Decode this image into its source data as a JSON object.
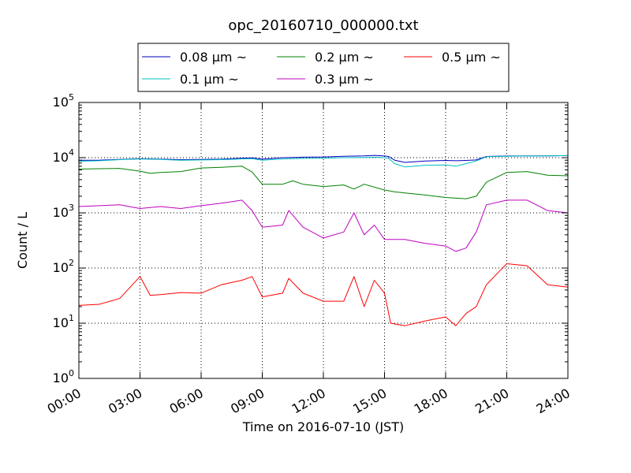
{
  "chart_data": {
    "type": "line",
    "title": "opc_20160710_000000.txt",
    "xlabel": "Time on 2016-07-10 (JST)",
    "ylabel": "Count / L",
    "xlim": [
      0,
      24
    ],
    "ylim": [
      1,
      100000
    ],
    "yscale": "log",
    "grid": true,
    "legend_position": "top",
    "x_ticks": [
      {
        "value": 0,
        "label": "00:00"
      },
      {
        "value": 3,
        "label": "03:00"
      },
      {
        "value": 6,
        "label": "06:00"
      },
      {
        "value": 9,
        "label": "09:00"
      },
      {
        "value": 12,
        "label": "12:00"
      },
      {
        "value": 15,
        "label": "15:00"
      },
      {
        "value": 18,
        "label": "18:00"
      },
      {
        "value": 21,
        "label": "21:00"
      },
      {
        "value": 24,
        "label": "24:00"
      }
    ],
    "y_ticks": [
      {
        "value": 1,
        "base": "10",
        "exp": "0"
      },
      {
        "value": 10,
        "base": "10",
        "exp": "1"
      },
      {
        "value": 100,
        "base": "10",
        "exp": "2"
      },
      {
        "value": 1000,
        "base": "10",
        "exp": "3"
      },
      {
        "value": 10000,
        "base": "10",
        "exp": "4"
      },
      {
        "value": 100000,
        "base": "10",
        "exp": "5"
      }
    ],
    "series": [
      {
        "name": "0.08 μm ~",
        "color": "#0000bf",
        "x": [
          0,
          1,
          2,
          3,
          4,
          5,
          6,
          7,
          8,
          8.5,
          9,
          10,
          11,
          12,
          13,
          14,
          14.5,
          15,
          15.2,
          15.5,
          16,
          17,
          18,
          18.5,
          19,
          19.5,
          20,
          21,
          22,
          23,
          24
        ],
        "y": [
          9000,
          9000,
          9300,
          9600,
          9400,
          9200,
          9300,
          9400,
          9800,
          9900,
          9400,
          10000,
          10200,
          10300,
          10600,
          10800,
          11000,
          10700,
          10500,
          9000,
          8200,
          8700,
          8900,
          8800,
          8900,
          9100,
          10500,
          10700,
          10800,
          10800,
          10900
        ]
      },
      {
        "name": "0.1 μm ~",
        "color": "#00bfbf",
        "x": [
          0,
          1,
          2,
          3,
          4,
          5,
          6,
          7,
          8,
          8.5,
          9,
          10,
          11,
          12,
          13,
          14,
          14.5,
          15,
          15.2,
          15.5,
          16,
          17,
          18,
          18.5,
          19,
          19.5,
          20,
          21,
          22,
          23,
          24
        ],
        "y": [
          8600,
          8800,
          9200,
          9500,
          9300,
          9000,
          9100,
          9200,
          9500,
          9600,
          9000,
          9500,
          9700,
          9800,
          10000,
          10100,
          10200,
          10000,
          9700,
          7800,
          6800,
          7300,
          7400,
          7000,
          7800,
          8700,
          10400,
          10600,
          10700,
          10800,
          10900
        ]
      },
      {
        "name": "0.2 μm ~",
        "color": "#008000",
        "x": [
          0,
          1,
          2,
          3,
          3.5,
          4,
          5,
          6,
          7,
          8,
          8.5,
          9,
          10,
          10.5,
          11,
          12,
          13,
          13.5,
          14,
          15,
          15.5,
          16,
          17,
          18,
          19,
          19.5,
          20,
          21,
          22,
          23,
          24
        ],
        "y": [
          6200,
          6300,
          6400,
          5700,
          5200,
          5400,
          5600,
          6500,
          6700,
          7000,
          5500,
          3300,
          3300,
          3800,
          3300,
          3000,
          3200,
          2700,
          3300,
          2600,
          2400,
          2300,
          2100,
          1900,
          1800,
          2000,
          3600,
          5400,
          5600,
          4800,
          4700
        ]
      },
      {
        "name": "0.3 μm ~",
        "color": "#bf00bf",
        "x": [
          0,
          1,
          2,
          3,
          4,
          5,
          6,
          7,
          8,
          8.5,
          9,
          10,
          10.3,
          11,
          12,
          13,
          13.5,
          14,
          14.5,
          15,
          16,
          17,
          18,
          18.5,
          19,
          19.5,
          20,
          21,
          22,
          23,
          24
        ],
        "y": [
          1300,
          1350,
          1400,
          1200,
          1300,
          1200,
          1350,
          1500,
          1700,
          1100,
          550,
          600,
          1100,
          550,
          350,
          450,
          1000,
          400,
          600,
          330,
          330,
          280,
          250,
          200,
          230,
          450,
          1400,
          1700,
          1700,
          1100,
          1000
        ]
      },
      {
        "name": "0.5 μm ~",
        "color": "#ff0000",
        "x": [
          0,
          1,
          2,
          3,
          3.5,
          4,
          5,
          6,
          7,
          8,
          8.5,
          9,
          10,
          10.3,
          11,
          12,
          13,
          13.5,
          14,
          14.5,
          15,
          15.3,
          16,
          17,
          18,
          18.5,
          19,
          19.5,
          20,
          21,
          22,
          23,
          24
        ],
        "y": [
          21,
          22,
          28,
          70,
          32,
          33,
          36,
          35,
          50,
          60,
          70,
          30,
          35,
          65,
          35,
          25,
          25,
          70,
          20,
          60,
          35,
          10,
          9,
          11,
          13,
          9,
          15,
          20,
          50,
          120,
          110,
          50,
          45
        ]
      }
    ]
  }
}
